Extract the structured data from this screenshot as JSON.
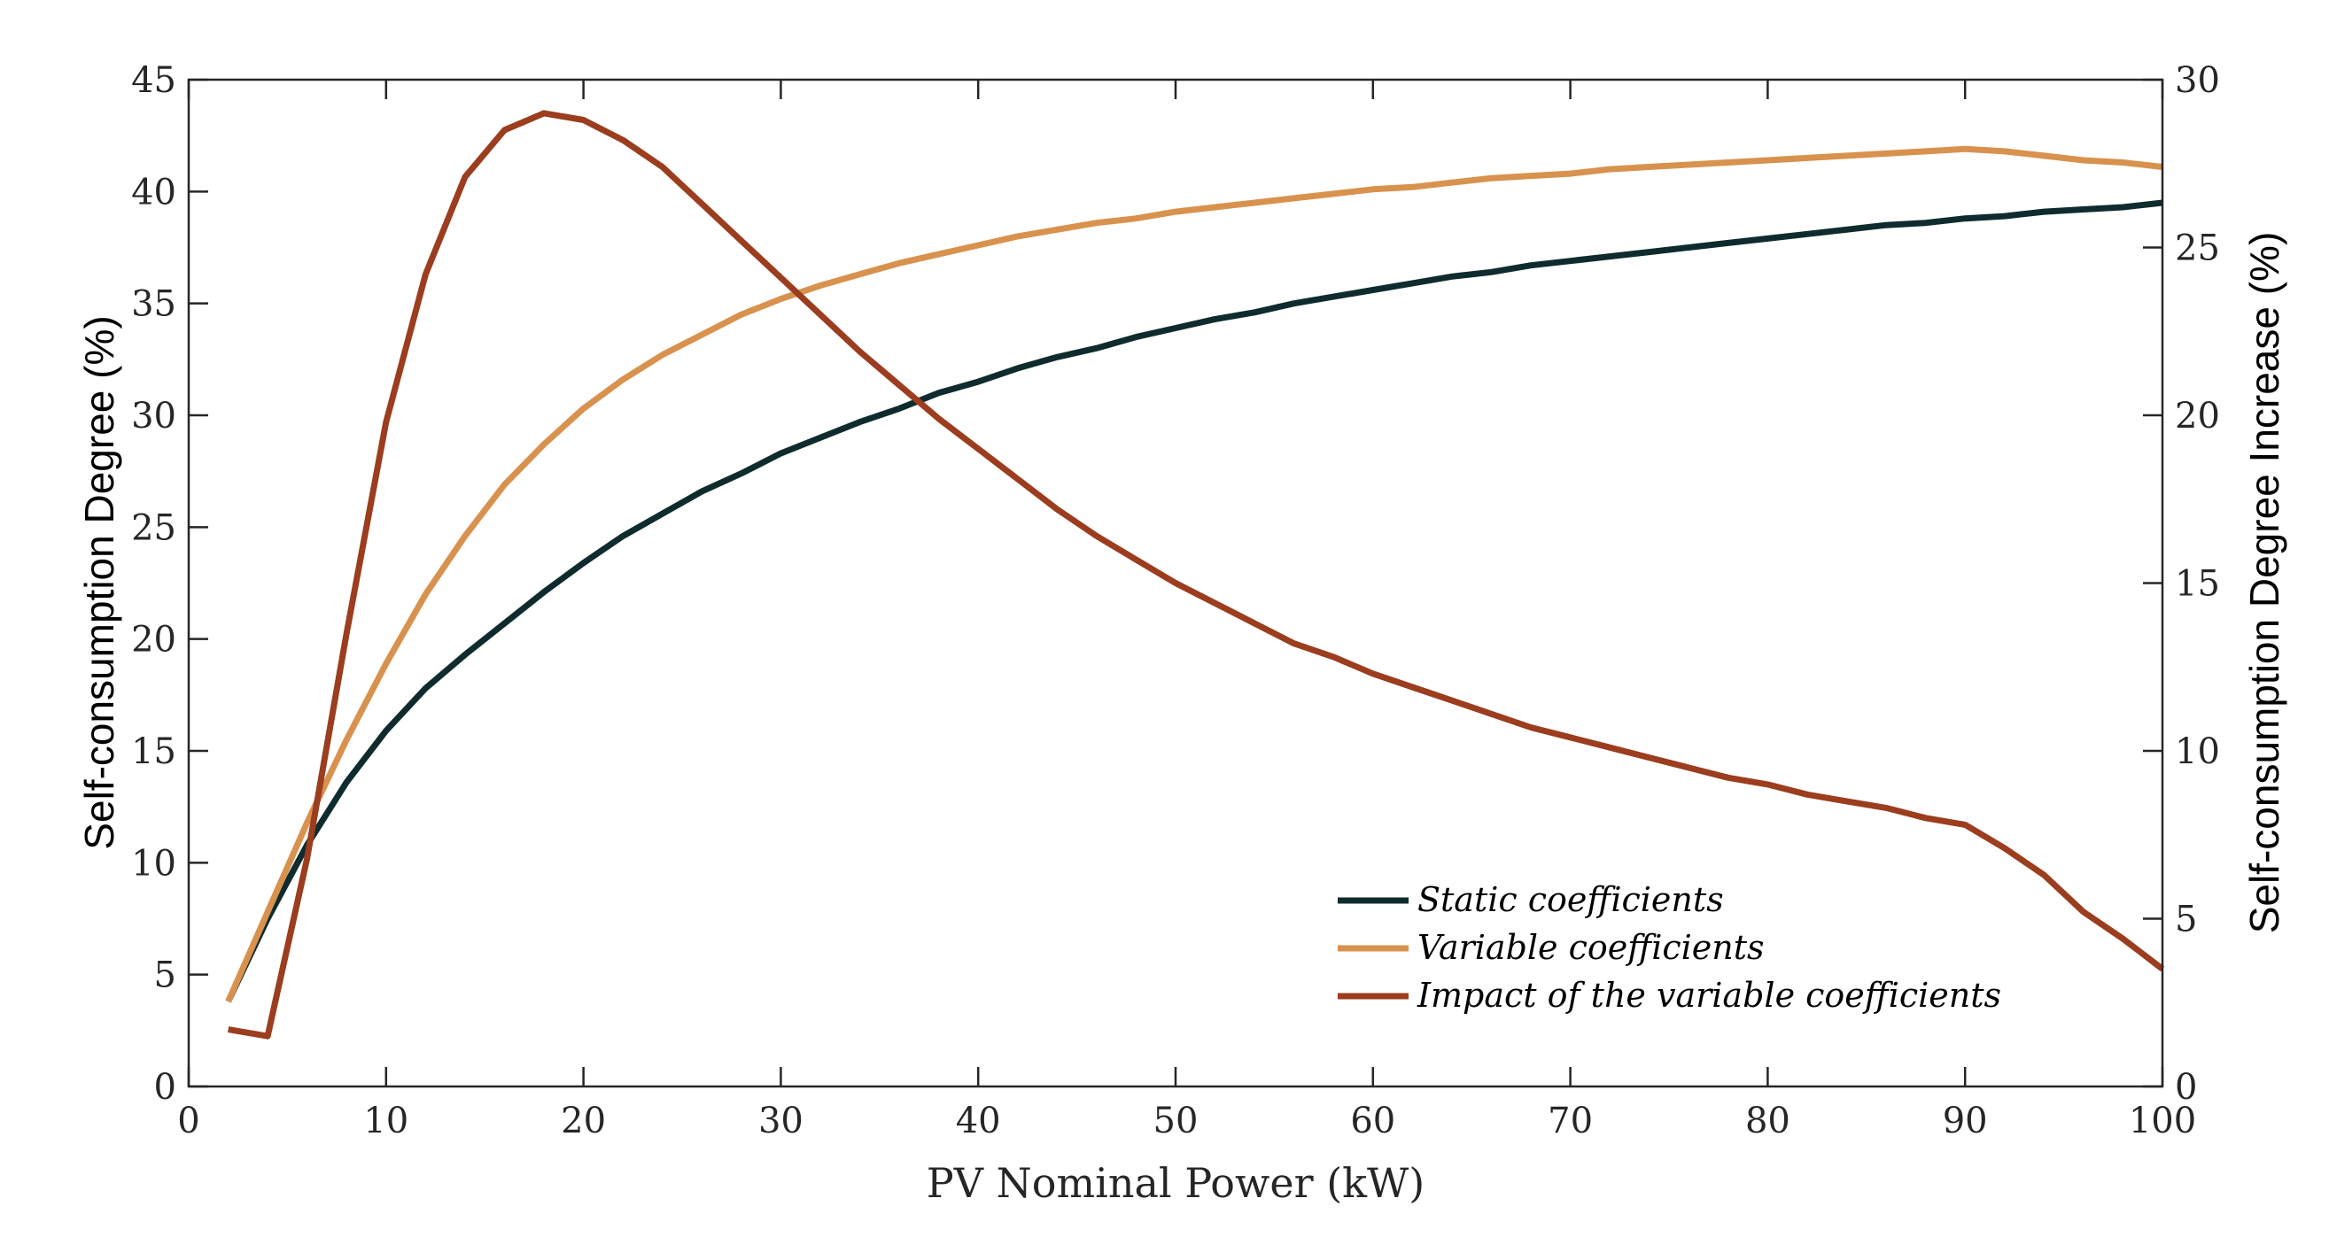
{
  "chart_data": {
    "type": "line",
    "title": "",
    "xlabel": "PV Nominal Power (kW)",
    "ylabel_left": "Self-consumption Degree (%)",
    "ylabel_right": "Self-consumption Degree Increase (%)",
    "xlim": [
      0,
      100
    ],
    "ylim_left": [
      0,
      45
    ],
    "ylim_right": [
      0,
      30
    ],
    "xticks": [
      "0",
      "10",
      "20",
      "30",
      "40",
      "50",
      "60",
      "70",
      "80",
      "90",
      "100"
    ],
    "yticks_left": [
      "0",
      "5",
      "10",
      "15",
      "20",
      "25",
      "30",
      "35",
      "40",
      "45"
    ],
    "yticks_right": [
      "0",
      "5",
      "10",
      "15",
      "20",
      "25",
      "30"
    ],
    "grid": false,
    "legend_position": "bottom-right",
    "x": [
      2,
      4,
      6,
      8,
      10,
      12,
      14,
      16,
      18,
      20,
      22,
      24,
      26,
      28,
      30,
      32,
      34,
      36,
      38,
      40,
      42,
      44,
      46,
      48,
      50,
      52,
      54,
      56,
      58,
      60,
      62,
      64,
      66,
      68,
      70,
      72,
      74,
      76,
      78,
      80,
      82,
      84,
      86,
      88,
      90,
      92,
      94,
      96,
      98,
      100
    ],
    "series": [
      {
        "name": "Static coefficients",
        "axis": "left",
        "color": "#0f2b2e",
        "values": [
          3.8,
          7.5,
          10.8,
          13.6,
          15.9,
          17.8,
          19.3,
          20.7,
          22.1,
          23.4,
          24.6,
          25.6,
          26.6,
          27.4,
          28.3,
          29.0,
          29.7,
          30.3,
          31.0,
          31.5,
          32.1,
          32.6,
          33.0,
          33.5,
          33.9,
          34.3,
          34.6,
          35.0,
          35.3,
          35.6,
          35.9,
          36.2,
          36.4,
          36.7,
          36.9,
          37.1,
          37.3,
          37.5,
          37.7,
          37.9,
          38.1,
          38.3,
          38.5,
          38.6,
          38.8,
          38.9,
          39.1,
          39.2,
          39.3,
          39.5
        ]
      },
      {
        "name": "Variable coefficients",
        "axis": "left",
        "color": "#d8924e",
        "values": [
          3.8,
          7.8,
          11.8,
          15.5,
          18.9,
          22.0,
          24.6,
          26.9,
          28.7,
          30.3,
          31.6,
          32.7,
          33.6,
          34.5,
          35.2,
          35.8,
          36.3,
          36.8,
          37.2,
          37.6,
          38.0,
          38.3,
          38.6,
          38.8,
          39.1,
          39.3,
          39.5,
          39.7,
          39.9,
          40.1,
          40.2,
          40.4,
          40.6,
          40.7,
          40.8,
          41.0,
          41.1,
          41.2,
          41.3,
          41.4,
          41.5,
          41.6,
          41.7,
          41.8,
          41.9,
          41.8,
          41.6,
          41.4,
          41.3,
          41.1
        ]
      },
      {
        "name": "Impact of the variable coefficients",
        "axis": "right",
        "color": "#9b3d1e",
        "values": [
          1.7,
          1.5,
          6.8,
          13.5,
          19.8,
          24.2,
          27.1,
          28.5,
          29.0,
          28.8,
          28.2,
          27.4,
          26.3,
          25.2,
          24.1,
          23.0,
          21.9,
          20.9,
          19.9,
          19.0,
          18.1,
          17.2,
          16.4,
          15.7,
          15.0,
          14.4,
          13.8,
          13.2,
          12.8,
          12.3,
          11.9,
          11.5,
          11.1,
          10.7,
          10.4,
          10.1,
          9.8,
          9.5,
          9.2,
          9.0,
          8.7,
          8.5,
          8.3,
          8.0,
          7.8,
          7.1,
          6.3,
          5.2,
          4.4,
          3.5
        ]
      }
    ]
  }
}
